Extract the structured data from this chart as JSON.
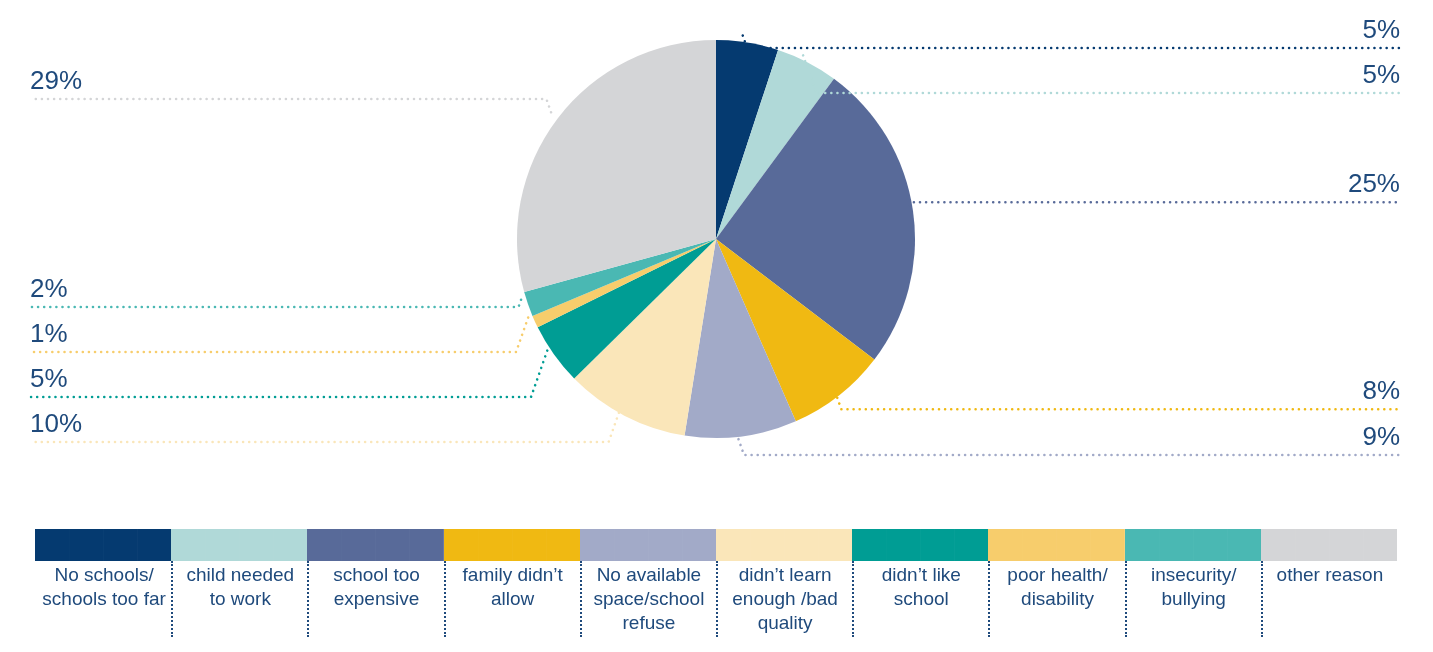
{
  "chart_data": {
    "type": "pie",
    "categories": [
      "No schools/ schools too far",
      "child needed to work",
      "school too expensive",
      "family didn’t allow",
      "No available space/school refuse",
      "didn’t learn enough /bad quality",
      "didn’t like school",
      "poor health/ disability",
      "insecurity/ bullying",
      "other reason"
    ],
    "values": [
      5,
      5,
      25,
      8,
      9,
      10,
      5,
      1,
      2,
      29
    ],
    "value_labels": [
      "5%",
      "5%",
      "25%",
      "8%",
      "9%",
      "10%",
      "5%",
      "1%",
      "2%",
      "29%"
    ],
    "colors": [
      "#053a70",
      "#b0d9d8",
      "#586a99",
      "#f0b912",
      "#a2aac8",
      "#fae6b9",
      "#009d94",
      "#f7cd6c",
      "#4ab8b3",
      "#d4d5d7"
    ],
    "legend": "bottom"
  }
}
